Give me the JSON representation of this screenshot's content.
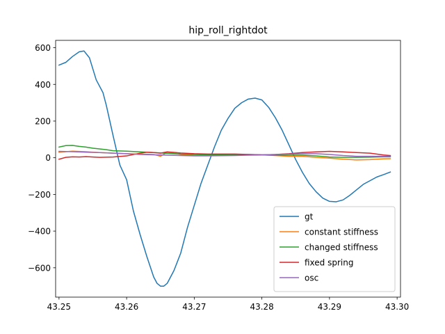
{
  "chart_data": {
    "type": "line",
    "title": "hip_roll_rightdot",
    "xlabel": "",
    "ylabel": "",
    "xlim": [
      43.2495,
      43.3005
    ],
    "ylim": [
      -760,
      640
    ],
    "xticks": [
      43.25,
      43.26,
      43.27,
      43.28,
      43.29,
      43.3
    ],
    "xtick_labels": [
      "43.25",
      "43.26",
      "43.27",
      "43.28",
      "43.29",
      "43.30"
    ],
    "yticks": [
      -600,
      -400,
      -200,
      0,
      200,
      400,
      600
    ],
    "ytick_labels": [
      "−600",
      "−400",
      "−200",
      "0",
      "200",
      "400",
      "600"
    ],
    "grid": false,
    "legend_position": "lower right",
    "series": [
      {
        "name": "gt",
        "color": "#1f77b4",
        "x": [
          43.25,
          43.251,
          43.252,
          43.253,
          43.2537,
          43.2545,
          43.2555,
          43.2565,
          43.257,
          43.258,
          43.259,
          43.26,
          43.261,
          43.262,
          43.263,
          43.264,
          43.2645,
          43.265,
          43.2655,
          43.266,
          43.267,
          43.268,
          43.269,
          43.27,
          43.271,
          43.272,
          43.273,
          43.274,
          43.275,
          43.276,
          43.277,
          43.278,
          43.279,
          43.28,
          43.281,
          43.282,
          43.283,
          43.284,
          43.285,
          43.286,
          43.287,
          43.288,
          43.289,
          43.29,
          43.291,
          43.292,
          43.293,
          43.294,
          43.295,
          43.296,
          43.297,
          43.298,
          43.299
        ],
        "values": [
          505,
          520,
          552,
          578,
          582,
          545,
          425,
          355,
          285,
          120,
          -40,
          -120,
          -290,
          -420,
          -540,
          -650,
          -685,
          -700,
          -700,
          -685,
          -615,
          -520,
          -380,
          -260,
          -140,
          -40,
          60,
          150,
          215,
          270,
          300,
          320,
          325,
          315,
          275,
          218,
          150,
          70,
          -10,
          -80,
          -140,
          -185,
          -220,
          -238,
          -240,
          -230,
          -205,
          -175,
          -145,
          -125,
          -105,
          -92,
          -78
        ]
      },
      {
        "name": "constant stiffness",
        "color": "#ff7f0e",
        "x": [
          43.25,
          43.252,
          43.254,
          43.256,
          43.258,
          43.26,
          43.262,
          43.264,
          43.265,
          43.266,
          43.268,
          43.27,
          43.272,
          43.274,
          43.276,
          43.278,
          43.28,
          43.282,
          43.284,
          43.286,
          43.288,
          43.29,
          43.292,
          43.294,
          43.296,
          43.298,
          43.299
        ],
        "values": [
          30,
          36,
          33,
          28,
          25,
          22,
          20,
          18,
          8,
          30,
          18,
          12,
          12,
          14,
          16,
          18,
          16,
          12,
          8,
          8,
          2,
          -2,
          -8,
          -12,
          -10,
          -6,
          -5
        ]
      },
      {
        "name": "changed stiffness",
        "color": "#2ca02c",
        "x": [
          43.25,
          43.251,
          43.252,
          43.253,
          43.254,
          43.255,
          43.256,
          43.257,
          43.258,
          43.26,
          43.262,
          43.264,
          43.266,
          43.268,
          43.27,
          43.272,
          43.274,
          43.276,
          43.278,
          43.28,
          43.282,
          43.284,
          43.286,
          43.288,
          43.29,
          43.292,
          43.294,
          43.296,
          43.298,
          43.299
        ],
        "values": [
          58,
          66,
          67,
          62,
          58,
          52,
          48,
          44,
          38,
          36,
          32,
          28,
          24,
          20,
          18,
          16,
          15,
          15,
          15,
          15,
          14,
          14,
          14,
          10,
          4,
          2,
          2,
          3,
          5,
          5
        ]
      },
      {
        "name": "fixed spring",
        "color": "#d62728",
        "x": [
          43.25,
          43.251,
          43.252,
          43.253,
          43.254,
          43.255,
          43.256,
          43.258,
          43.26,
          43.262,
          43.263,
          43.264,
          43.265,
          43.266,
          43.268,
          43.27,
          43.272,
          43.274,
          43.276,
          43.278,
          43.28,
          43.282,
          43.284,
          43.286,
          43.288,
          43.29,
          43.292,
          43.294,
          43.296,
          43.298,
          43.299
        ],
        "values": [
          -8,
          2,
          5,
          4,
          6,
          4,
          2,
          4,
          10,
          25,
          30,
          28,
          25,
          32,
          26,
          22,
          20,
          20,
          20,
          18,
          16,
          18,
          22,
          28,
          32,
          35,
          32,
          28,
          25,
          15,
          12
        ]
      },
      {
        "name": "osc",
        "color": "#9467bd",
        "x": [
          43.25,
          43.252,
          43.254,
          43.256,
          43.258,
          43.26,
          43.262,
          43.264,
          43.266,
          43.268,
          43.27,
          43.272,
          43.274,
          43.276,
          43.278,
          43.28,
          43.282,
          43.284,
          43.286,
          43.288,
          43.29,
          43.292,
          43.294,
          43.296,
          43.298,
          43.299
        ],
        "values": [
          35,
          33,
          30,
          28,
          25,
          22,
          18,
          16,
          14,
          12,
          10,
          10,
          11,
          12,
          14,
          15,
          18,
          20,
          22,
          22,
          18,
          12,
          8,
          8,
          8,
          8
        ]
      }
    ]
  }
}
